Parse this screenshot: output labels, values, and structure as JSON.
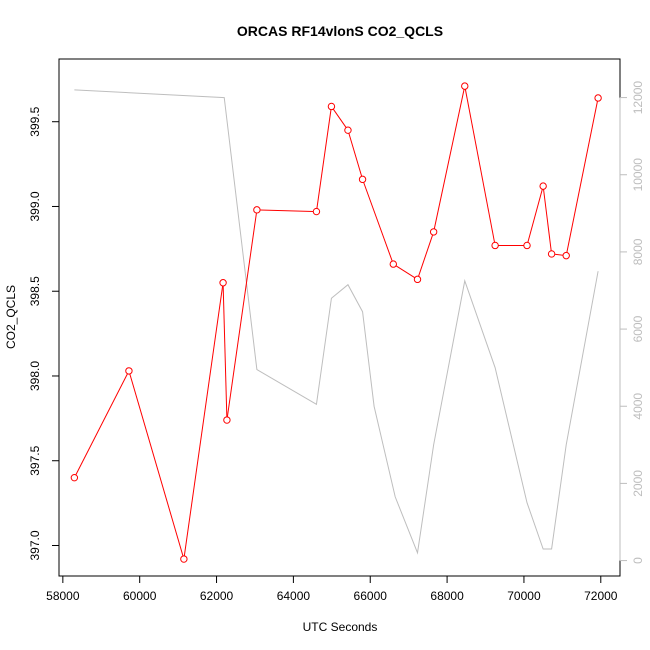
{
  "chart_data": {
    "type": "line",
    "title": "ORCAS RF14vlonS CO2_QCLS",
    "xlabel": "UTC Seconds",
    "ylabel": "CO2_QCLS",
    "xlim": [
      57900,
      72500
    ],
    "ylim": [
      396.82,
      399.87
    ],
    "y2lim": [
      -400,
      13000
    ],
    "x_ticks": [
      58000,
      60000,
      62000,
      64000,
      66000,
      68000,
      70000,
      72000
    ],
    "y_ticks": [
      397.0,
      397.5,
      398.0,
      398.5,
      399.0,
      399.5
    ],
    "y_tick_labels": [
      "397.0",
      "397.5",
      "398.0",
      "398.5",
      "399.0",
      "399.5"
    ],
    "y2_ticks": [
      0,
      2000,
      4000,
      6000,
      8000,
      10000,
      12000
    ],
    "grid": false,
    "series": [
      {
        "axis": "left",
        "color": "#ff0000",
        "marker": "open-circle",
        "points": [
          [
            58300,
            397.4
          ],
          [
            59720,
            398.03
          ],
          [
            61150,
            396.92
          ],
          [
            62170,
            398.55
          ],
          [
            62270,
            397.74
          ],
          [
            63050,
            398.98
          ],
          [
            64600,
            398.97
          ],
          [
            64990,
            399.59
          ],
          [
            65420,
            399.45
          ],
          [
            65800,
            399.16
          ],
          [
            66600,
            398.66
          ],
          [
            67230,
            398.57
          ],
          [
            67650,
            398.85
          ],
          [
            68460,
            399.71
          ],
          [
            69250,
            398.77
          ],
          [
            70080,
            398.77
          ],
          [
            70500,
            399.12
          ],
          [
            70720,
            398.72
          ],
          [
            71100,
            398.71
          ],
          [
            71930,
            399.64
          ]
        ]
      },
      {
        "axis": "right",
        "color": "#bebebe",
        "marker": "none",
        "points": [
          [
            58300,
            12200
          ],
          [
            62200,
            12000
          ],
          [
            63050,
            4950
          ],
          [
            64600,
            4050
          ],
          [
            64990,
            6800
          ],
          [
            65420,
            7150
          ],
          [
            65800,
            6450
          ],
          [
            66100,
            4000
          ],
          [
            66650,
            1650
          ],
          [
            67230,
            200
          ],
          [
            67650,
            3000
          ],
          [
            68460,
            7250
          ],
          [
            69250,
            5000
          ],
          [
            70080,
            1500
          ],
          [
            70500,
            300
          ],
          [
            70720,
            300
          ],
          [
            71100,
            3000
          ],
          [
            71930,
            7500
          ]
        ]
      }
    ]
  }
}
